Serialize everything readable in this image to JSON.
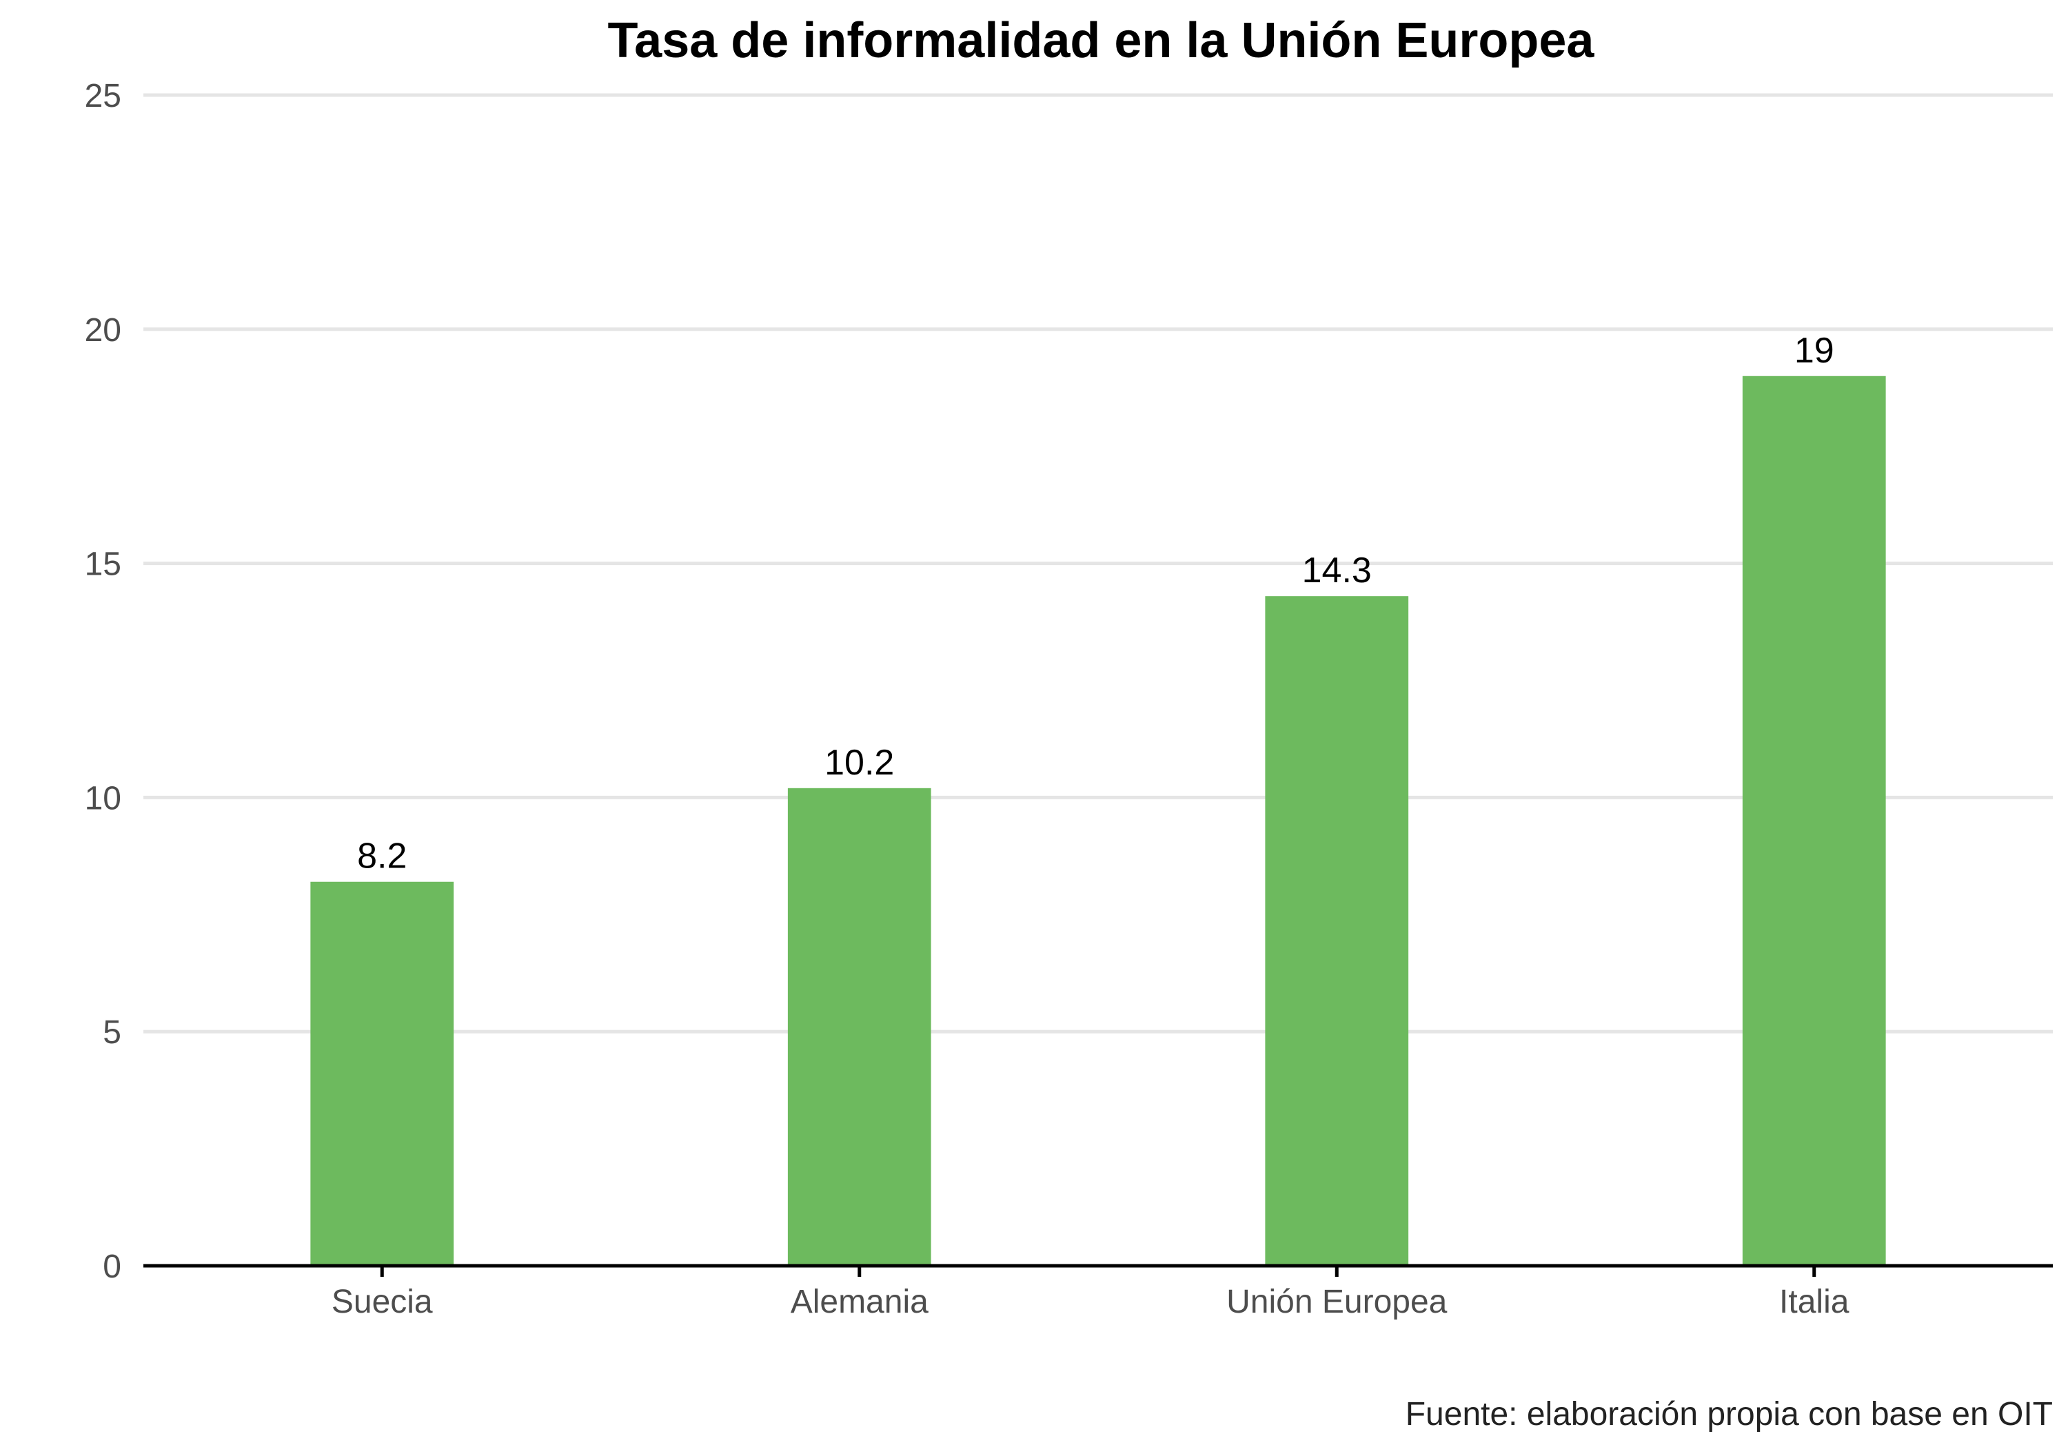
{
  "chart_data": {
    "type": "bar",
    "title": "Tasa de informalidad en la Unión Europea",
    "xlabel": "",
    "ylabel": "",
    "categories": [
      "Suecia",
      "Alemania",
      "Unión Europea",
      "Italia"
    ],
    "values": [
      8.2,
      10.2,
      14.3,
      19
    ],
    "value_labels": [
      "8.2",
      "10.2",
      "14.3",
      "19"
    ],
    "ylim": [
      0,
      25
    ],
    "y_ticks": [
      0,
      5,
      10,
      15,
      20,
      25
    ],
    "y_tick_labels": [
      "0",
      "5",
      "10",
      "15",
      "20",
      "25"
    ],
    "grid": "horizontal",
    "legend": "none",
    "caption": "Fuente: elaboración propia con base en OIT",
    "colors": {
      "bar": "#6dba5e",
      "grid": "#e5e5e5",
      "axis": "#000000"
    }
  }
}
